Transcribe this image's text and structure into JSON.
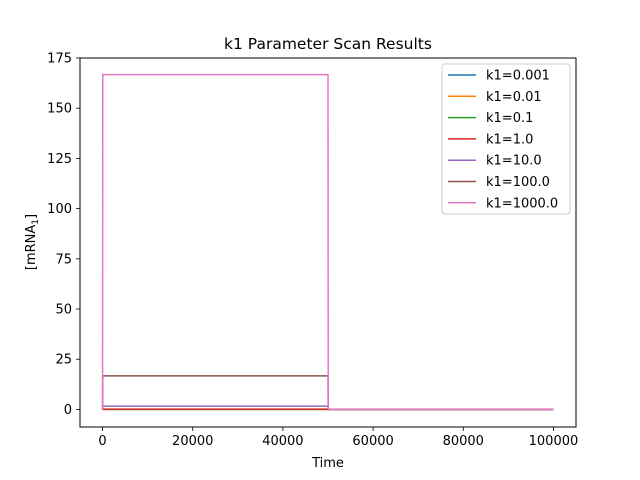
{
  "chart_data": {
    "type": "line",
    "title": "k1 Parameter Scan Results",
    "xlabel": "Time",
    "ylabel": "[mRNA",
    "ylabel_subscript": "1",
    "ylabel_suffix": "]",
    "xlim": [
      -5000,
      105000
    ],
    "ylim": [
      -8.75,
      175
    ],
    "xticks": [
      0,
      20000,
      40000,
      60000,
      80000,
      100000
    ],
    "xtick_labels": [
      "0",
      "20000",
      "40000",
      "60000",
      "80000",
      "100000"
    ],
    "yticks": [
      0,
      25,
      50,
      75,
      100,
      125,
      150,
      175
    ],
    "ytick_labels": [
      "0",
      "25",
      "50",
      "75",
      "100",
      "125",
      "150",
      "175"
    ],
    "grid": false,
    "legend_position": "top-right",
    "series": [
      {
        "name": "k1=0.001",
        "color": "#1f77b4",
        "x": [
          0,
          50,
          50000,
          50050,
          100000
        ],
        "y": [
          0,
          0.000167,
          0.000167,
          0,
          0
        ]
      },
      {
        "name": "k1=0.01",
        "color": "#ff7f0e",
        "x": [
          0,
          50,
          50000,
          50050,
          100000
        ],
        "y": [
          0,
          0.00167,
          0.00167,
          0,
          0
        ]
      },
      {
        "name": "k1=0.1",
        "color": "#2ca02c",
        "x": [
          0,
          50,
          50000,
          50050,
          100000
        ],
        "y": [
          0,
          0.0167,
          0.0167,
          0,
          0
        ]
      },
      {
        "name": "k1=1.0",
        "color": "#d62728",
        "x": [
          0,
          50,
          50000,
          50050,
          100000
        ],
        "y": [
          0,
          0.167,
          0.167,
          0,
          0
        ]
      },
      {
        "name": "k1=10.0",
        "color": "#9467bd",
        "x": [
          0,
          50,
          50000,
          50050,
          100000
        ],
        "y": [
          0,
          1.67,
          1.67,
          0,
          0
        ]
      },
      {
        "name": "k1=100.0",
        "color": "#8c564b",
        "x": [
          0,
          50,
          50000,
          50050,
          100000
        ],
        "y": [
          0,
          16.7,
          16.7,
          0,
          0
        ]
      },
      {
        "name": "k1=1000.0",
        "color": "#e377c2",
        "x": [
          0,
          50,
          50000,
          50050,
          100000
        ],
        "y": [
          0,
          166.7,
          166.7,
          0,
          0
        ]
      }
    ]
  }
}
